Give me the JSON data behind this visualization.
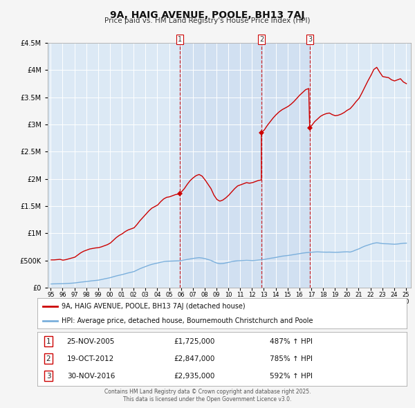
{
  "title": "9A, HAIG AVENUE, POOLE, BH13 7AJ",
  "subtitle": "Price paid vs. HM Land Registry's House Price Index (HPI)",
  "fig_bg_color": "#f5f5f5",
  "plot_bg_color": "#dce9f5",
  "grid_color": "#ffffff",
  "red_line_color": "#cc0000",
  "blue_line_color": "#7aafdc",
  "ylim": [
    0,
    4500000
  ],
  "yticks": [
    0,
    500000,
    1000000,
    1500000,
    2000000,
    2500000,
    3000000,
    3500000,
    4000000,
    4500000
  ],
  "sale_markers": [
    {
      "date": "2005-11-25",
      "value": 1725000,
      "label": "1"
    },
    {
      "date": "2012-10-19",
      "value": 2847000,
      "label": "2"
    },
    {
      "date": "2016-11-30",
      "value": 2935000,
      "label": "3"
    }
  ],
  "sale_table": [
    {
      "num": "1",
      "date": "25-NOV-2005",
      "price": "£1,725,000",
      "pct": "487% ↑ HPI"
    },
    {
      "num": "2",
      "date": "19-OCT-2012",
      "price": "£2,847,000",
      "pct": "785% ↑ HPI"
    },
    {
      "num": "3",
      "date": "30-NOV-2016",
      "price": "£2,935,000",
      "pct": "592% ↑ HPI"
    }
  ],
  "legend_red": "9A, HAIG AVENUE, POOLE, BH13 7AJ (detached house)",
  "legend_blue": "HPI: Average price, detached house, Bournemouth Christchurch and Poole",
  "footer": "Contains HM Land Registry data © Crown copyright and database right 2025.\nThis data is licensed under the Open Government Licence v3.0.",
  "red_line_data": [
    [
      1995,
      1,
      510000
    ],
    [
      1995,
      4,
      510000
    ],
    [
      1995,
      7,
      515000
    ],
    [
      1995,
      10,
      520000
    ],
    [
      1996,
      1,
      505000
    ],
    [
      1996,
      4,
      515000
    ],
    [
      1996,
      7,
      530000
    ],
    [
      1996,
      10,
      545000
    ],
    [
      1997,
      1,
      560000
    ],
    [
      1997,
      4,
      600000
    ],
    [
      1997,
      7,
      640000
    ],
    [
      1997,
      10,
      670000
    ],
    [
      1998,
      1,
      690000
    ],
    [
      1998,
      4,
      710000
    ],
    [
      1998,
      7,
      720000
    ],
    [
      1998,
      10,
      730000
    ],
    [
      1999,
      1,
      735000
    ],
    [
      1999,
      4,
      750000
    ],
    [
      1999,
      7,
      770000
    ],
    [
      1999,
      10,
      790000
    ],
    [
      2000,
      1,
      820000
    ],
    [
      2000,
      4,
      870000
    ],
    [
      2000,
      7,
      920000
    ],
    [
      2000,
      10,
      960000
    ],
    [
      2001,
      1,
      990000
    ],
    [
      2001,
      4,
      1030000
    ],
    [
      2001,
      7,
      1060000
    ],
    [
      2001,
      10,
      1080000
    ],
    [
      2002,
      1,
      1100000
    ],
    [
      2002,
      4,
      1160000
    ],
    [
      2002,
      7,
      1230000
    ],
    [
      2002,
      10,
      1290000
    ],
    [
      2003,
      1,
      1350000
    ],
    [
      2003,
      4,
      1410000
    ],
    [
      2003,
      7,
      1460000
    ],
    [
      2003,
      10,
      1490000
    ],
    [
      2004,
      1,
      1520000
    ],
    [
      2004,
      4,
      1580000
    ],
    [
      2004,
      7,
      1630000
    ],
    [
      2004,
      10,
      1660000
    ],
    [
      2005,
      1,
      1670000
    ],
    [
      2005,
      4,
      1690000
    ],
    [
      2005,
      7,
      1710000
    ],
    [
      2005,
      10,
      1720000
    ],
    [
      2005,
      11,
      1725000
    ],
    [
      2006,
      1,
      1760000
    ],
    [
      2006,
      4,
      1820000
    ],
    [
      2006,
      7,
      1900000
    ],
    [
      2006,
      10,
      1970000
    ],
    [
      2007,
      1,
      2020000
    ],
    [
      2007,
      4,
      2060000
    ],
    [
      2007,
      7,
      2080000
    ],
    [
      2007,
      10,
      2050000
    ],
    [
      2008,
      1,
      1980000
    ],
    [
      2008,
      4,
      1900000
    ],
    [
      2008,
      7,
      1820000
    ],
    [
      2008,
      10,
      1700000
    ],
    [
      2009,
      1,
      1620000
    ],
    [
      2009,
      4,
      1590000
    ],
    [
      2009,
      7,
      1610000
    ],
    [
      2009,
      10,
      1650000
    ],
    [
      2010,
      1,
      1700000
    ],
    [
      2010,
      4,
      1760000
    ],
    [
      2010,
      7,
      1820000
    ],
    [
      2010,
      10,
      1870000
    ],
    [
      2011,
      1,
      1890000
    ],
    [
      2011,
      4,
      1910000
    ],
    [
      2011,
      7,
      1930000
    ],
    [
      2011,
      10,
      1920000
    ],
    [
      2012,
      1,
      1930000
    ],
    [
      2012,
      4,
      1950000
    ],
    [
      2012,
      7,
      1970000
    ],
    [
      2012,
      10,
      1980000
    ],
    [
      2012,
      10,
      2847000
    ],
    [
      2013,
      1,
      2900000
    ],
    [
      2013,
      4,
      2980000
    ],
    [
      2013,
      7,
      3050000
    ],
    [
      2013,
      10,
      3120000
    ],
    [
      2014,
      1,
      3180000
    ],
    [
      2014,
      4,
      3230000
    ],
    [
      2014,
      7,
      3270000
    ],
    [
      2014,
      10,
      3300000
    ],
    [
      2015,
      1,
      3330000
    ],
    [
      2015,
      4,
      3370000
    ],
    [
      2015,
      7,
      3420000
    ],
    [
      2015,
      10,
      3480000
    ],
    [
      2016,
      1,
      3540000
    ],
    [
      2016,
      4,
      3590000
    ],
    [
      2016,
      7,
      3640000
    ],
    [
      2016,
      10,
      3660000
    ],
    [
      2016,
      11,
      2935000
    ],
    [
      2017,
      1,
      2980000
    ],
    [
      2017,
      4,
      3050000
    ],
    [
      2017,
      7,
      3100000
    ],
    [
      2017,
      10,
      3150000
    ],
    [
      2018,
      1,
      3180000
    ],
    [
      2018,
      4,
      3200000
    ],
    [
      2018,
      7,
      3210000
    ],
    [
      2018,
      10,
      3180000
    ],
    [
      2019,
      1,
      3160000
    ],
    [
      2019,
      4,
      3170000
    ],
    [
      2019,
      7,
      3190000
    ],
    [
      2019,
      10,
      3220000
    ],
    [
      2020,
      1,
      3260000
    ],
    [
      2020,
      4,
      3290000
    ],
    [
      2020,
      7,
      3350000
    ],
    [
      2020,
      10,
      3420000
    ],
    [
      2021,
      1,
      3480000
    ],
    [
      2021,
      4,
      3580000
    ],
    [
      2021,
      7,
      3690000
    ],
    [
      2021,
      10,
      3800000
    ],
    [
      2022,
      1,
      3900000
    ],
    [
      2022,
      4,
      4010000
    ],
    [
      2022,
      7,
      4050000
    ],
    [
      2022,
      10,
      3960000
    ],
    [
      2023,
      1,
      3880000
    ],
    [
      2023,
      4,
      3870000
    ],
    [
      2023,
      7,
      3860000
    ],
    [
      2023,
      10,
      3820000
    ],
    [
      2024,
      1,
      3800000
    ],
    [
      2024,
      4,
      3820000
    ],
    [
      2024,
      7,
      3840000
    ],
    [
      2024,
      10,
      3780000
    ],
    [
      2025,
      1,
      3750000
    ]
  ],
  "blue_line_data": [
    [
      1995,
      1,
      68000
    ],
    [
      1995,
      4,
      70000
    ],
    [
      1995,
      7,
      71000
    ],
    [
      1995,
      10,
      72000
    ],
    [
      1996,
      1,
      73000
    ],
    [
      1996,
      4,
      76000
    ],
    [
      1996,
      7,
      79000
    ],
    [
      1996,
      10,
      82000
    ],
    [
      1997,
      1,
      87000
    ],
    [
      1997,
      4,
      94000
    ],
    [
      1997,
      7,
      101000
    ],
    [
      1997,
      10,
      107000
    ],
    [
      1998,
      1,
      113000
    ],
    [
      1998,
      4,
      120000
    ],
    [
      1998,
      7,
      127000
    ],
    [
      1998,
      10,
      132000
    ],
    [
      1999,
      1,
      138000
    ],
    [
      1999,
      4,
      149000
    ],
    [
      1999,
      7,
      161000
    ],
    [
      1999,
      10,
      172000
    ],
    [
      2000,
      1,
      184000
    ],
    [
      2000,
      4,
      200000
    ],
    [
      2000,
      7,
      215000
    ],
    [
      2000,
      10,
      228000
    ],
    [
      2001,
      1,
      240000
    ],
    [
      2001,
      4,
      255000
    ],
    [
      2001,
      7,
      270000
    ],
    [
      2001,
      10,
      282000
    ],
    [
      2002,
      1,
      296000
    ],
    [
      2002,
      4,
      322000
    ],
    [
      2002,
      7,
      348000
    ],
    [
      2002,
      10,
      370000
    ],
    [
      2003,
      1,
      390000
    ],
    [
      2003,
      4,
      411000
    ],
    [
      2003,
      7,
      428000
    ],
    [
      2003,
      10,
      441000
    ],
    [
      2004,
      1,
      453000
    ],
    [
      2004,
      4,
      467000
    ],
    [
      2004,
      7,
      478000
    ],
    [
      2004,
      10,
      484000
    ],
    [
      2005,
      1,
      487000
    ],
    [
      2005,
      4,
      489000
    ],
    [
      2005,
      7,
      491000
    ],
    [
      2005,
      10,
      493000
    ],
    [
      2006,
      1,
      497000
    ],
    [
      2006,
      4,
      508000
    ],
    [
      2006,
      7,
      519000
    ],
    [
      2006,
      10,
      528000
    ],
    [
      2007,
      1,
      537000
    ],
    [
      2007,
      4,
      545000
    ],
    [
      2007,
      7,
      551000
    ],
    [
      2007,
      10,
      544000
    ],
    [
      2008,
      1,
      533000
    ],
    [
      2008,
      4,
      517000
    ],
    [
      2008,
      7,
      500000
    ],
    [
      2008,
      10,
      474000
    ],
    [
      2009,
      1,
      451000
    ],
    [
      2009,
      4,
      440000
    ],
    [
      2009,
      7,
      443000
    ],
    [
      2009,
      10,
      454000
    ],
    [
      2010,
      1,
      466000
    ],
    [
      2010,
      4,
      479000
    ],
    [
      2010,
      7,
      488000
    ],
    [
      2010,
      10,
      494000
    ],
    [
      2011,
      1,
      496000
    ],
    [
      2011,
      4,
      499000
    ],
    [
      2011,
      7,
      502000
    ],
    [
      2011,
      10,
      500000
    ],
    [
      2012,
      1,
      497000
    ],
    [
      2012,
      4,
      501000
    ],
    [
      2012,
      7,
      507000
    ],
    [
      2012,
      10,
      513000
    ],
    [
      2013,
      1,
      519000
    ],
    [
      2013,
      4,
      529000
    ],
    [
      2013,
      7,
      539000
    ],
    [
      2013,
      10,
      547000
    ],
    [
      2014,
      1,
      556000
    ],
    [
      2014,
      4,
      568000
    ],
    [
      2014,
      7,
      578000
    ],
    [
      2014,
      10,
      585000
    ],
    [
      2015,
      1,
      591000
    ],
    [
      2015,
      4,
      599000
    ],
    [
      2015,
      7,
      608000
    ],
    [
      2015,
      10,
      617000
    ],
    [
      2016,
      1,
      626000
    ],
    [
      2016,
      4,
      635000
    ],
    [
      2016,
      7,
      642000
    ],
    [
      2016,
      10,
      647000
    ],
    [
      2017,
      1,
      651000
    ],
    [
      2017,
      4,
      655000
    ],
    [
      2017,
      7,
      658000
    ],
    [
      2017,
      10,
      655000
    ],
    [
      2018,
      1,
      653000
    ],
    [
      2018,
      4,
      652000
    ],
    [
      2018,
      7,
      653000
    ],
    [
      2018,
      10,
      651000
    ],
    [
      2019,
      1,
      649000
    ],
    [
      2019,
      4,
      651000
    ],
    [
      2019,
      7,
      654000
    ],
    [
      2019,
      10,
      657000
    ],
    [
      2020,
      1,
      659000
    ],
    [
      2020,
      4,
      654000
    ],
    [
      2020,
      7,
      671000
    ],
    [
      2020,
      10,
      694000
    ],
    [
      2021,
      1,
      714000
    ],
    [
      2021,
      4,
      741000
    ],
    [
      2021,
      7,
      764000
    ],
    [
      2021,
      10,
      782000
    ],
    [
      2022,
      1,
      800000
    ],
    [
      2022,
      4,
      816000
    ],
    [
      2022,
      7,
      825000
    ],
    [
      2022,
      10,
      818000
    ],
    [
      2023,
      1,
      809000
    ],
    [
      2023,
      4,
      807000
    ],
    [
      2023,
      7,
      805000
    ],
    [
      2023,
      10,
      801000
    ],
    [
      2024,
      1,
      798000
    ],
    [
      2024,
      4,
      802000
    ],
    [
      2024,
      7,
      809000
    ],
    [
      2024,
      10,
      816000
    ],
    [
      2025,
      1,
      818000
    ]
  ]
}
